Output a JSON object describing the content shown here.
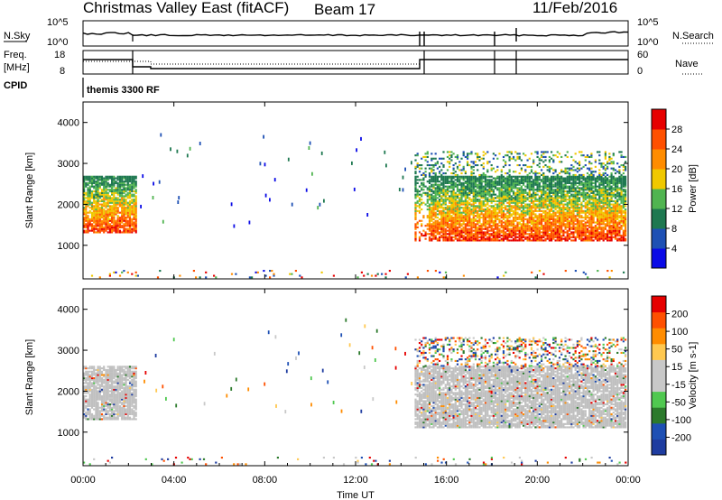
{
  "header": {
    "station": "Christmas Valley East (fitACF)",
    "beam": "Beam 17",
    "date": "11/Feb/2016"
  },
  "panels": {
    "nsky_label": "N.Sky",
    "nsearch_label": "N.Search",
    "freq_label_1": "Freq.",
    "freq_label_2": "[MHz]",
    "nave_label": "Nave",
    "cpid_label": "CPID",
    "mode_text": "themis 3300 RF",
    "nsky_ticks": [
      "10^5",
      "10^0"
    ],
    "nsearch_ticks": [
      "10^5",
      "10^0"
    ],
    "freq_ticks": [
      "18",
      "8"
    ],
    "nave_ticks": [
      "60",
      "0"
    ]
  },
  "colors": {
    "power": [
      "#0a0ae6",
      "#1e50b4",
      "#1e7850",
      "#50b450",
      "#f0c800",
      "#ff8c00",
      "#ff5000",
      "#e60000"
    ],
    "velocity": [
      "#e60000",
      "#ff5000",
      "#ff8c00",
      "#ffc850",
      "#c8c8c8",
      "#c8c8c8",
      "#50c850",
      "#2c7a2c",
      "#1e50b4",
      "#1e3ca0"
    ],
    "ground": "#c0c0c0"
  },
  "chart_data": [
    {
      "type": "heatmap",
      "title": "Power",
      "ylabel": "Slant Range [km]",
      "colorbar_label": "Power [dB]",
      "ylim": [
        180,
        4500
      ],
      "yticks": [
        "1000",
        "2000",
        "3000",
        "4000"
      ],
      "xlim_hours": [
        0,
        24
      ],
      "colorbar_ticks": [
        "4",
        "8",
        "12",
        "16",
        "20",
        "24",
        "28"
      ],
      "regions": [
        {
          "t0": 0.0,
          "t1": 2.3,
          "r0": 1300,
          "r1": 2700,
          "level": "high"
        },
        {
          "t0": 14.6,
          "t1": 23.9,
          "r0": 1100,
          "r1": 2700,
          "level": "high"
        },
        {
          "t0": 14.6,
          "t1": 23.9,
          "r0": 2700,
          "r1": 3300,
          "level": "low"
        },
        {
          "t0": 0.0,
          "t1": 24.0,
          "r0": 200,
          "r1": 400,
          "level": "sparse"
        }
      ]
    },
    {
      "type": "heatmap",
      "title": "Velocity",
      "ylabel": "Slant Range [km]",
      "colorbar_label": "Velocity [m s-1]",
      "ylim": [
        180,
        4500
      ],
      "yticks": [
        "1000",
        "2000",
        "3000",
        "4000"
      ],
      "xlim_hours": [
        0,
        24
      ],
      "colorbar_ticks": [
        "200",
        "100",
        "50",
        "15",
        "-15",
        "-50",
        "-100",
        "-200"
      ],
      "regions": [
        {
          "t0": 0.0,
          "t1": 2.3,
          "r0": 1300,
          "r1": 2600,
          "level": "ground"
        },
        {
          "t0": 14.6,
          "t1": 23.9,
          "r0": 1100,
          "r1": 2600,
          "level": "ground"
        },
        {
          "t0": 14.6,
          "t1": 23.9,
          "r0": 2600,
          "r1": 3300,
          "level": "mixed"
        },
        {
          "t0": 0.0,
          "t1": 24.0,
          "r0": 200,
          "r1": 400,
          "level": "sparse"
        }
      ]
    }
  ],
  "time_axis": {
    "xlabel": "Time UT",
    "ticks": [
      "00:00",
      "04:00",
      "08:00",
      "12:00",
      "16:00",
      "20:00",
      "00:00"
    ],
    "tick_hours": [
      0,
      4,
      8,
      12,
      16,
      20,
      24
    ]
  }
}
